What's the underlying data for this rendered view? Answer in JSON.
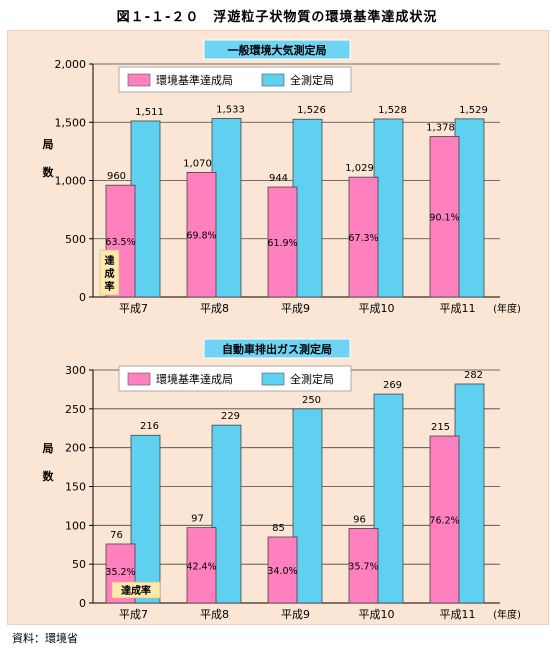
{
  "title": "図１-１-２０　浮遊粒子状物質の環境基準達成状況",
  "source": "資料：環境省",
  "colors": {
    "achieved": "#ff80bf",
    "total": "#5fd0f0",
    "panel_bg": "#fbe6d5",
    "header_bg": "#6fd3f3"
  },
  "chart_data": [
    {
      "type": "bar",
      "title": "一般環境大気測定局",
      "xlabel": "(年度)",
      "ylabel": "局数",
      "categories": [
        "平成7",
        "平成8",
        "平成9",
        "平成10",
        "平成11"
      ],
      "ylim": [
        0,
        2000
      ],
      "yticks": [
        "0",
        "500",
        "1,000",
        "1,500",
        "2,000"
      ],
      "ytick_values": [
        0,
        500,
        1000,
        1500,
        2000
      ],
      "series": [
        {
          "name": "環境基準達成局",
          "values": [
            960,
            1070,
            944,
            1029,
            1378
          ],
          "labels": [
            "960",
            "1,070",
            "944",
            "1,029",
            "1,378"
          ]
        },
        {
          "name": "全測定局",
          "values": [
            1511,
            1533,
            1526,
            1528,
            1529
          ],
          "labels": [
            "1,511",
            "1,533",
            "1,526",
            "1,528",
            "1,529"
          ]
        }
      ],
      "rate_labels": [
        "63.5%",
        "69.8%",
        "61.9%",
        "67.3%",
        "90.1%"
      ],
      "rate_caption": "達成率"
    },
    {
      "type": "bar",
      "title": "自動車排出ガス測定局",
      "xlabel": "(年度)",
      "ylabel": "局数",
      "categories": [
        "平成7",
        "平成8",
        "平成9",
        "平成10",
        "平成11"
      ],
      "ylim": [
        0,
        300
      ],
      "yticks": [
        "0",
        "50",
        "100",
        "150",
        "200",
        "250",
        "300"
      ],
      "ytick_values": [
        0,
        50,
        100,
        150,
        200,
        250,
        300
      ],
      "series": [
        {
          "name": "環境基準達成局",
          "values": [
            76,
            97,
            85,
            96,
            215
          ],
          "labels": [
            "76",
            "97",
            "85",
            "96",
            "215"
          ]
        },
        {
          "name": "全測定局",
          "values": [
            216,
            229,
            250,
            269,
            282
          ],
          "labels": [
            "216",
            "229",
            "250",
            "269",
            "282"
          ]
        }
      ],
      "rate_labels": [
        "35.2%",
        "42.4%",
        "34.0%",
        "35.7%",
        "76.2%"
      ],
      "rate_caption": "達成率"
    }
  ]
}
